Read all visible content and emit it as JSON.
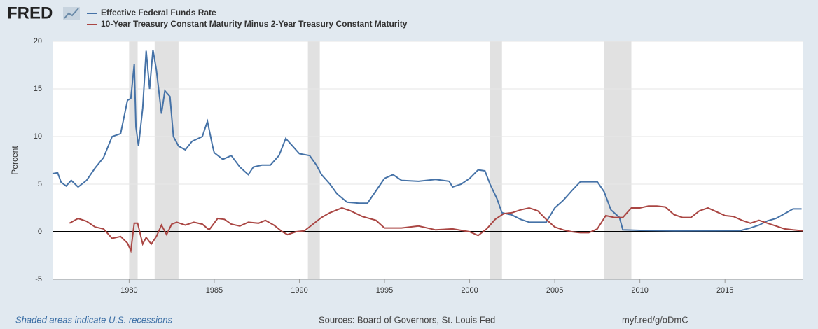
{
  "logo": "FRED",
  "chart_data": {
    "type": "line",
    "y_label": "Percent",
    "xlim": [
      1975.5,
      2019.6
    ],
    "ylim": [
      -5,
      20
    ],
    "xticks": [
      1980,
      1985,
      1990,
      1995,
      2000,
      2005,
      2010,
      2015
    ],
    "yticks": [
      -5,
      0,
      5,
      10,
      15,
      20
    ],
    "grid": true,
    "recessions": [
      [
        1980.0,
        1980.5
      ],
      [
        1981.5,
        1982.9
      ],
      [
        1990.5,
        1991.2
      ],
      [
        2001.2,
        2001.9
      ],
      [
        2007.9,
        2009.5
      ]
    ],
    "series": [
      {
        "name": "Effective Federal Funds Rate",
        "color": "#4572a7",
        "x": [
          1975.5,
          1975.8,
          1976.0,
          1976.3,
          1976.6,
          1977.0,
          1977.5,
          1978.0,
          1978.5,
          1979.0,
          1979.5,
          1979.9,
          1980.1,
          1980.3,
          1980.4,
          1980.55,
          1980.8,
          1981.0,
          1981.2,
          1981.4,
          1981.6,
          1981.9,
          1982.1,
          1982.4,
          1982.6,
          1982.9,
          1983.3,
          1983.7,
          1984.3,
          1984.6,
          1984.9,
          1985.0,
          1985.5,
          1986.0,
          1986.5,
          1987.0,
          1987.3,
          1987.8,
          1988.3,
          1988.8,
          1989.2,
          1989.6,
          1990.0,
          1990.6,
          1991.0,
          1991.3,
          1991.8,
          1992.2,
          1992.8,
          1993.5,
          1994.0,
          1994.5,
          1995.0,
          1995.5,
          1996.0,
          1997.0,
          1998.0,
          1998.8,
          1999.0,
          1999.5,
          2000.0,
          2000.5,
          2000.9,
          2001.2,
          2001.6,
          2001.9,
          2002.5,
          2003.0,
          2003.5,
          2004.5,
          2005.0,
          2005.5,
          2006.0,
          2006.5,
          2007.5,
          2007.9,
          2008.3,
          2008.8,
          2009.0,
          2010.0,
          2012.0,
          2015.9,
          2016.5,
          2017.0,
          2017.5,
          2018.0,
          2018.5,
          2019.0,
          2019.5
        ],
        "values": [
          6.1,
          6.2,
          5.2,
          4.8,
          5.4,
          4.7,
          5.4,
          6.7,
          7.8,
          10.0,
          10.3,
          13.8,
          14.0,
          17.6,
          11.0,
          9.0,
          13.0,
          19.0,
          15.0,
          19.1,
          17.0,
          12.4,
          14.8,
          14.2,
          10.0,
          9.0,
          8.6,
          9.5,
          10.0,
          11.6,
          9.0,
          8.3,
          7.6,
          8.0,
          6.8,
          6.0,
          6.8,
          7.0,
          7.0,
          8.0,
          9.8,
          9.0,
          8.2,
          8.0,
          7.0,
          6.0,
          5.0,
          4.0,
          3.1,
          3.0,
          3.0,
          4.3,
          5.6,
          6.0,
          5.4,
          5.3,
          5.5,
          5.3,
          4.7,
          5.0,
          5.6,
          6.5,
          6.4,
          5.0,
          3.5,
          2.0,
          1.75,
          1.3,
          1.0,
          1.0,
          2.5,
          3.3,
          4.3,
          5.25,
          5.25,
          4.2,
          2.3,
          1.5,
          0.2,
          0.15,
          0.1,
          0.12,
          0.4,
          0.7,
          1.15,
          1.4,
          1.9,
          2.4,
          2.4
        ]
      },
      {
        "name": "10-Year Treasury Constant Maturity Minus 2-Year Treasury Constant Maturity",
        "color": "#aa4643",
        "x": [
          1976.5,
          1977.0,
          1977.5,
          1978.0,
          1978.5,
          1979.0,
          1979.5,
          1979.9,
          1980.1,
          1980.3,
          1980.5,
          1980.8,
          1981.0,
          1981.3,
          1981.6,
          1981.9,
          1982.2,
          1982.5,
          1982.8,
          1983.3,
          1983.8,
          1984.3,
          1984.7,
          1985.2,
          1985.6,
          1986.0,
          1986.5,
          1987.0,
          1987.6,
          1988.0,
          1988.5,
          1989.0,
          1989.3,
          1989.8,
          1990.3,
          1990.8,
          1991.3,
          1991.8,
          1992.5,
          1993.0,
          1993.7,
          1994.5,
          1995.0,
          1996.0,
          1997.0,
          1998.0,
          1999.0,
          2000.0,
          2000.5,
          2001.0,
          2001.5,
          2002.0,
          2002.5,
          2003.0,
          2003.5,
          2004.0,
          2004.5,
          2005.0,
          2005.5,
          2006.0,
          2006.5,
          2007.0,
          2007.5,
          2008.0,
          2008.5,
          2009.0,
          2009.5,
          2010.0,
          2010.5,
          2011.0,
          2011.5,
          2012.0,
          2012.5,
          2013.0,
          2013.5,
          2014.0,
          2014.5,
          2015.0,
          2015.5,
          2016.0,
          2016.5,
          2017.0,
          2017.5,
          2018.0,
          2018.5,
          2019.0,
          2019.6
        ],
        "values": [
          0.9,
          1.4,
          1.1,
          0.5,
          0.3,
          -0.7,
          -0.5,
          -1.2,
          -2.0,
          0.9,
          0.9,
          -1.3,
          -0.6,
          -1.3,
          -0.5,
          0.7,
          -0.3,
          0.8,
          1.0,
          0.7,
          1.0,
          0.8,
          0.2,
          1.4,
          1.3,
          0.8,
          0.6,
          1.0,
          0.9,
          1.2,
          0.7,
          0.0,
          -0.3,
          0.0,
          0.1,
          0.8,
          1.5,
          2.0,
          2.5,
          2.2,
          1.6,
          1.2,
          0.4,
          0.4,
          0.6,
          0.2,
          0.3,
          0.0,
          -0.4,
          0.3,
          1.3,
          1.9,
          2.0,
          2.3,
          2.5,
          2.2,
          1.3,
          0.5,
          0.2,
          0.0,
          -0.1,
          -0.1,
          0.3,
          1.7,
          1.5,
          1.5,
          2.5,
          2.5,
          2.7,
          2.7,
          2.6,
          1.8,
          1.5,
          1.5,
          2.2,
          2.5,
          2.1,
          1.7,
          1.6,
          1.2,
          0.9,
          1.2,
          0.9,
          0.6,
          0.3,
          0.2,
          0.1
        ]
      }
    ]
  },
  "footer": {
    "note": "Shaded areas indicate U.S. recessions",
    "source": "Sources: Board of Governors, St. Louis Fed",
    "link": "myf.red/g/oDmC"
  }
}
